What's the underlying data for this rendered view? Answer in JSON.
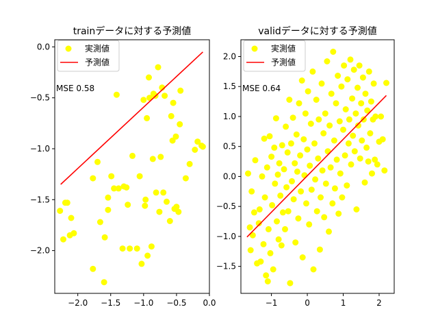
{
  "chart_data": [
    {
      "type": "scatter",
      "title": "trainデータに対する予測値",
      "xlabel": "",
      "ylabel": "",
      "xlim": [
        -2.35,
        0.0
      ],
      "ylim": [
        -2.42,
        0.07
      ],
      "xticks": [
        -2.0,
        -1.5,
        -1.0,
        -0.5,
        0.0
      ],
      "xtick_labels": [
        "−2.0",
        "−1.5",
        "−1.0",
        "−0.5",
        "0.0"
      ],
      "yticks": [
        0.0,
        -0.5,
        -1.0,
        -1.5,
        -2.0
      ],
      "ytick_labels": [
        "0.0",
        "−0.5",
        "−1.0",
        "−1.5",
        "−2.0"
      ],
      "grid": false,
      "legend": "top-left",
      "annotation": "MSE 0.58",
      "series": [
        {
          "name": "実測値",
          "kind": "scatter",
          "color": "#ffff00",
          "points": [
            [
              -2.27,
              -1.61
            ],
            [
              -2.22,
              -1.89
            ],
            [
              -2.19,
              -1.53
            ],
            [
              -2.16,
              -1.53
            ],
            [
              -2.12,
              -1.85
            ],
            [
              -2.1,
              -1.68
            ],
            [
              -2.06,
              -1.83
            ],
            [
              -1.77,
              -1.29
            ],
            [
              -1.77,
              -2.18
            ],
            [
              -1.7,
              -1.13
            ],
            [
              -1.66,
              -1.72
            ],
            [
              -1.6,
              -2.31
            ],
            [
              -1.59,
              -1.87
            ],
            [
              -1.54,
              -1.48
            ],
            [
              -1.54,
              -1.6
            ],
            [
              -1.49,
              -1.27
            ],
            [
              -1.45,
              -1.39
            ],
            [
              -1.41,
              -0.47
            ],
            [
              -1.38,
              -1.39
            ],
            [
              -1.32,
              -1.98
            ],
            [
              -1.3,
              -1.37
            ],
            [
              -1.26,
              -1.38
            ],
            [
              -1.24,
              -1.55
            ],
            [
              -1.21,
              -1.98
            ],
            [
              -1.17,
              -1.07
            ],
            [
              -1.1,
              -1.98
            ],
            [
              -1.06,
              -1.27
            ],
            [
              -1.03,
              -2.13
            ],
            [
              -1.0,
              -0.52
            ],
            [
              -0.98,
              -1.56
            ],
            [
              -0.97,
              -1.5
            ],
            [
              -0.95,
              -0.7
            ],
            [
              -0.94,
              -2.05
            ],
            [
              -0.92,
              -0.3
            ],
            [
              -0.91,
              -0.5
            ],
            [
              -0.88,
              -1.96
            ],
            [
              -0.86,
              -1.1
            ],
            [
              -0.85,
              -0.46
            ],
            [
              -0.82,
              -0.48
            ],
            [
              -0.81,
              -1.43
            ],
            [
              -0.78,
              -0.2
            ],
            [
              -0.76,
              -1.62
            ],
            [
              -0.74,
              -1.08
            ],
            [
              -0.72,
              -0.4
            ],
            [
              -0.7,
              -1.43
            ],
            [
              -0.68,
              -0.48
            ],
            [
              -0.65,
              -1.52
            ],
            [
              -0.6,
              -1.71
            ],
            [
              -0.58,
              -0.68
            ],
            [
              -0.56,
              -0.92
            ],
            [
              -0.55,
              -0.55
            ],
            [
              -0.53,
              -1.59
            ],
            [
              -0.51,
              -0.88
            ],
            [
              -0.5,
              -1.57
            ],
            [
              -0.47,
              -1.62
            ],
            [
              -0.45,
              -0.76
            ],
            [
              -0.44,
              -0.43
            ],
            [
              -0.36,
              -1.29
            ],
            [
              -0.3,
              -1.15
            ],
            [
              -0.22,
              -1.01
            ],
            [
              -0.18,
              -0.93
            ],
            [
              -0.12,
              -0.97
            ],
            [
              -0.1,
              -0.98
            ]
          ]
        },
        {
          "name": "予測値",
          "kind": "line",
          "color": "#ff0000",
          "points": [
            [
              -2.26,
              -1.35
            ],
            [
              -0.1,
              -0.05
            ]
          ]
        }
      ]
    },
    {
      "type": "scatter",
      "title": "validデータに対する予測値",
      "xlabel": "",
      "ylabel": "",
      "xlim": [
        -1.85,
        2.42
      ],
      "ylim": [
        -1.95,
        2.28
      ],
      "xticks": [
        -1,
        0,
        1,
        2
      ],
      "xtick_labels": [
        "−1",
        "0",
        "1",
        "2"
      ],
      "yticks": [
        2.0,
        1.5,
        1.0,
        0.5,
        0.0,
        -0.5,
        -1.0,
        -1.5
      ],
      "ytick_labels": [
        "2.0",
        "1.5",
        "1.0",
        "0.5",
        "0.0",
        "−0.5",
        "−1.0",
        "−1.5"
      ],
      "grid": false,
      "legend": "top-left",
      "annotation": "MSE 0.64",
      "series": [
        {
          "name": "実測値",
          "kind": "scatter",
          "color": "#ffff00",
          "points": [
            [
              -1.65,
              0.05
            ],
            [
              -1.6,
              -0.85
            ],
            [
              -1.58,
              -1.23
            ],
            [
              -1.55,
              -0.25
            ],
            [
              -1.52,
              -0.98
            ],
            [
              -1.48,
              -0.6
            ],
            [
              -1.45,
              0.27
            ],
            [
              -1.4,
              -1.45
            ],
            [
              -1.35,
              -0.78
            ],
            [
              -1.33,
              -0.55
            ],
            [
              -1.3,
              -1.42
            ],
            [
              -1.26,
              0.0
            ],
            [
              -1.22,
              -1.13
            ],
            [
              -1.2,
              0.63
            ],
            [
              -1.18,
              -0.35
            ],
            [
              -1.15,
              -1.65
            ],
            [
              -1.12,
              0.15
            ],
            [
              -1.1,
              -1.75
            ],
            [
              -1.08,
              -0.88
            ],
            [
              -1.05,
              0.67
            ],
            [
              -1.03,
              -1.28
            ],
            [
              -1.0,
              0.33
            ],
            [
              -0.98,
              -0.48
            ],
            [
              -0.95,
              -1.55
            ],
            [
              -0.92,
              0.48
            ],
            [
              -0.9,
              -0.12
            ],
            [
              -0.87,
              0.97
            ],
            [
              -0.85,
              -0.75
            ],
            [
              -0.82,
              0.03
            ],
            [
              -0.8,
              -1.05
            ],
            [
              -0.78,
              0.22
            ],
            [
              -0.75,
              -0.32
            ],
            [
              -0.72,
              -1.15
            ],
            [
              -0.7,
              0.52
            ],
            [
              -0.68,
              -0.6
            ],
            [
              -0.65,
              0.12
            ],
            [
              -0.62,
              -0.88
            ],
            [
              -0.6,
              0.83
            ],
            [
              -0.58,
              -0.18
            ],
            [
              -0.55,
              0.4
            ],
            [
              -0.53,
              -0.58
            ],
            [
              -0.5,
              1.28
            ],
            [
              -0.48,
              -1.78
            ],
            [
              -0.45,
              0.55
            ],
            [
              -0.43,
              -0.08
            ],
            [
              -0.4,
              0.98
            ],
            [
              -0.38,
              -0.38
            ],
            [
              -0.35,
              0.22
            ],
            [
              -0.33,
              -1.1
            ],
            [
              -0.3,
              0.7
            ],
            [
              -0.28,
              0.08
            ],
            [
              -0.25,
              -0.7
            ],
            [
              -0.23,
              1.22
            ],
            [
              -0.2,
              0.35
            ],
            [
              -0.18,
              -0.25
            ],
            [
              -0.15,
              1.6
            ],
            [
              -0.13,
              -1.35
            ],
            [
              -0.1,
              0.62
            ],
            [
              -0.08,
              0.02
            ],
            [
              -0.05,
              1.05
            ],
            [
              -0.03,
              -0.45
            ],
            [
              0.0,
              0.45
            ],
            [
              0.02,
              1.42
            ],
            [
              0.05,
              -0.8
            ],
            [
              0.07,
              0.18
            ],
            [
              0.1,
              0.88
            ],
            [
              0.12,
              -0.22
            ],
            [
              0.15,
              1.75
            ],
            [
              0.17,
              -1.55
            ],
            [
              0.2,
              0.55
            ],
            [
              0.22,
              -0.05
            ],
            [
              0.25,
              1.28
            ],
            [
              0.27,
              -0.58
            ],
            [
              0.3,
              0.3
            ],
            [
              0.32,
              0.95
            ],
            [
              0.35,
              -1.22
            ],
            [
              0.37,
              -0.35
            ],
            [
              0.4,
              1.55
            ],
            [
              0.42,
              0.1
            ],
            [
              0.45,
              0.72
            ],
            [
              0.47,
              -0.68
            ],
            [
              0.5,
              1.05
            ],
            [
              0.52,
              -0.12
            ],
            [
              0.55,
              1.92
            ],
            [
              0.57,
              0.42
            ],
            [
              0.6,
              -0.92
            ],
            [
              0.62,
              0.85
            ],
            [
              0.65,
              0.15
            ],
            [
              0.67,
              1.38
            ],
            [
              0.7,
              -0.45
            ],
            [
              0.72,
              2.08
            ],
            [
              0.75,
              0.6
            ],
            [
              0.77,
              -0.2
            ],
            [
              0.8,
              1.22
            ],
            [
              0.82,
              0.28
            ],
            [
              0.85,
              1.68
            ],
            [
              0.87,
              -0.62
            ],
            [
              0.9,
              0.92
            ],
            [
              0.92,
              0.05
            ],
            [
              0.95,
              1.5
            ],
            [
              0.97,
              -0.35
            ],
            [
              1.0,
              0.78
            ],
            [
              1.02,
              1.85
            ],
            [
              1.05,
              0.35
            ],
            [
              1.07,
              1.12
            ],
            [
              1.1,
              -0.15
            ],
            [
              1.12,
              1.62
            ],
            [
              1.15,
              0.55
            ],
            [
              1.17,
              0.95
            ],
            [
              1.2,
              1.95
            ],
            [
              1.22,
              0.2
            ],
            [
              1.25,
              1.3
            ],
            [
              1.27,
              0.68
            ],
            [
              1.3,
              1.78
            ],
            [
              1.32,
              0.42
            ],
            [
              1.35,
              1.05
            ],
            [
              1.37,
              -0.55
            ],
            [
              1.4,
              1.48
            ],
            [
              1.42,
              0.85
            ],
            [
              1.45,
              1.85
            ],
            [
              1.47,
              0.3
            ],
            [
              1.5,
              1.22
            ],
            [
              1.52,
              0.6
            ],
            [
              1.55,
              1.65
            ],
            [
              1.57,
              0.95
            ],
            [
              1.6,
              -0.1
            ],
            [
              1.62,
              1.38
            ],
            [
              1.65,
              0.48
            ],
            [
              1.67,
              1.1
            ],
            [
              1.7,
              0.25
            ],
            [
              1.72,
              1.75
            ],
            [
              1.75,
              0.72
            ],
            [
              1.78,
              1.25
            ],
            [
              1.8,
              0.05
            ],
            [
              1.83,
              0.95
            ],
            [
              1.85,
              1.55
            ],
            [
              1.88,
              0.28
            ],
            [
              1.9,
              1.0
            ],
            [
              1.95,
              0.2
            ],
            [
              2.0,
              0.58
            ],
            [
              2.05,
              1.0
            ],
            [
              2.1,
              0.62
            ],
            [
              2.15,
              0.1
            ],
            [
              2.2,
              1.56
            ]
          ]
        },
        {
          "name": "予測値",
          "kind": "line",
          "color": "#ff0000",
          "points": [
            [
              -1.68,
              -1.01
            ],
            [
              2.2,
              1.35
            ]
          ]
        }
      ]
    }
  ]
}
